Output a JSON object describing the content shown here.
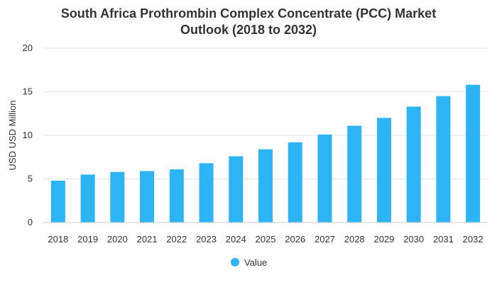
{
  "chart_data": {
    "type": "bar",
    "title_lines": [
      "South Africa Prothrombin Complex Concentrate (PCC) Market",
      "Outlook (2018 to 2032)"
    ],
    "xlabel": "",
    "ylabel": "USD USD Million",
    "ylim": [
      0,
      20
    ],
    "yticks": [
      0,
      5,
      10,
      15,
      20
    ],
    "grid": true,
    "legend_position": "bottom-center",
    "categories": [
      "2018",
      "2019",
      "2020",
      "2021",
      "2022",
      "2023",
      "2024",
      "2025",
      "2026",
      "2027",
      "2028",
      "2029",
      "2030",
      "2031",
      "2032"
    ],
    "series": [
      {
        "name": "Value",
        "color": "#2db4f5",
        "values": [
          4.8,
          5.5,
          5.8,
          5.9,
          6.1,
          6.8,
          7.6,
          8.4,
          9.2,
          10.1,
          11.1,
          12.0,
          13.3,
          14.5,
          15.8
        ]
      }
    ]
  }
}
